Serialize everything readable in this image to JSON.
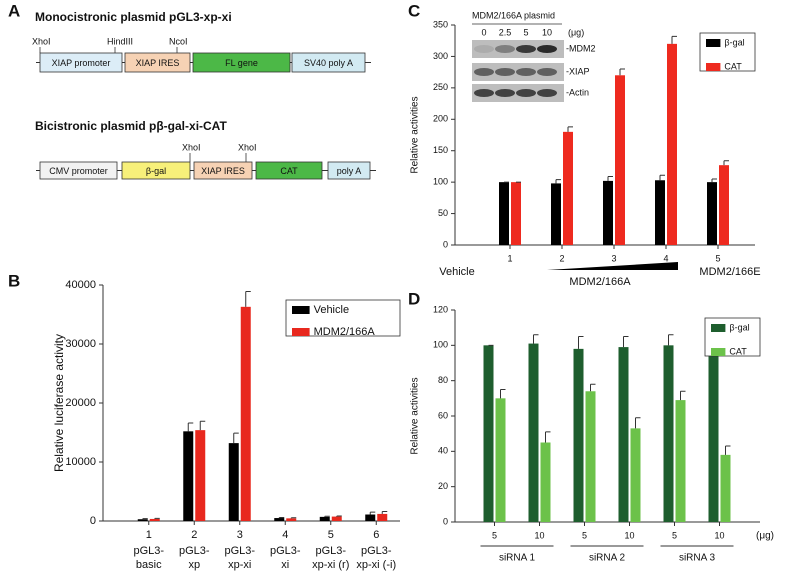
{
  "panel_labels": [
    "A",
    "B",
    "C",
    "D"
  ],
  "plasmids": [
    {
      "title": "Monocistronic plasmid pGL3-xp-xi",
      "sites": [
        "XhoI",
        "HindIII",
        "NcoI"
      ],
      "elements": [
        "XIAP promoter",
        "XIAP IRES",
        "FL gene",
        "SV40 poly A"
      ]
    },
    {
      "title": "Bicistronic plasmid pβ-gal-xi-CAT",
      "sites": [
        "XhoI",
        "XhoI"
      ],
      "elements": [
        "CMV promoter",
        "β-gal",
        "XIAP IRES",
        "CAT",
        "poly A"
      ]
    }
  ],
  "blot": {
    "title": "MDM2/166A plasmid",
    "doses": [
      "0",
      "2.5",
      "5",
      "10"
    ],
    "unit": "(μg)",
    "bands": [
      "-MDM2",
      "-XIAP",
      "-Actin"
    ]
  },
  "chart_data": [
    {
      "type": "bar",
      "y_label": "Relative luciferase activity",
      "categories": [
        "1",
        "2",
        "3",
        "4",
        "5",
        "6"
      ],
      "category_names": [
        [
          "pGL3-",
          "basic"
        ],
        [
          "pGL3-",
          "xp"
        ],
        [
          "pGL3-",
          "xp-xi"
        ],
        [
          "pGL3-",
          "xi"
        ],
        [
          "pGL3-",
          "xp-xi (r)"
        ],
        [
          "pGL3-",
          "xp-xi (-i)"
        ]
      ],
      "series": [
        {
          "name": "Vehicle",
          "color": "#000000",
          "values": [
            300,
            15200,
            13200,
            500,
            700,
            1100
          ],
          "errors": [
            100,
            1400,
            1700,
            100,
            100,
            400
          ]
        },
        {
          "name": "MDM2/166A",
          "color": "#e8281e",
          "values": [
            350,
            15400,
            36300,
            450,
            750,
            1200
          ],
          "errors": [
            100,
            1500,
            2600,
            100,
            100,
            400
          ]
        }
      ],
      "ylim": [
        0,
        40000
      ],
      "yticks": [
        0,
        10000,
        20000,
        30000,
        40000
      ],
      "legend": "upper right"
    },
    {
      "type": "bar",
      "y_label": "Relative activities",
      "categories": [
        "1",
        "2",
        "3",
        "4",
        "5"
      ],
      "group_labels": [
        "Vehicle",
        "MDM2/166A",
        "MDM2/166E"
      ],
      "series": [
        {
          "name": "β-gal",
          "color": "#000000",
          "values": [
            100,
            98,
            102,
            103,
            100
          ],
          "errors": [
            0,
            6,
            7,
            8,
            5
          ]
        },
        {
          "name": "CAT",
          "color": "#ee2a1f",
          "values": [
            100,
            180,
            270,
            320,
            127
          ],
          "errors": [
            0,
            8,
            10,
            12,
            7
          ]
        }
      ],
      "ylim": [
        0,
        350
      ],
      "yticks": [
        0,
        50,
        100,
        150,
        200,
        250,
        300,
        350
      ],
      "legend": "upper right"
    },
    {
      "type": "bar",
      "y_label": "Relative activities",
      "categories": [
        "5",
        "10",
        "5",
        "10",
        "5",
        "10"
      ],
      "group_labels": [
        "siRNA 1",
        "siRNA 2",
        "siRNA 3"
      ],
      "unit_label": "(μg)",
      "series": [
        {
          "name": "β-gal",
          "color": "#1e5e2e",
          "values": [
            100,
            101,
            98,
            99,
            100,
            102
          ],
          "errors": [
            0,
            5,
            7,
            6,
            6,
            5
          ]
        },
        {
          "name": "CAT",
          "color": "#6cc24a",
          "values": [
            70,
            45,
            74,
            53,
            69,
            38
          ],
          "errors": [
            5,
            6,
            4,
            6,
            5,
            5
          ]
        }
      ],
      "ylim": [
        0,
        120
      ],
      "yticks": [
        0,
        20,
        40,
        60,
        80,
        100,
        120
      ],
      "legend": "upper right"
    }
  ]
}
